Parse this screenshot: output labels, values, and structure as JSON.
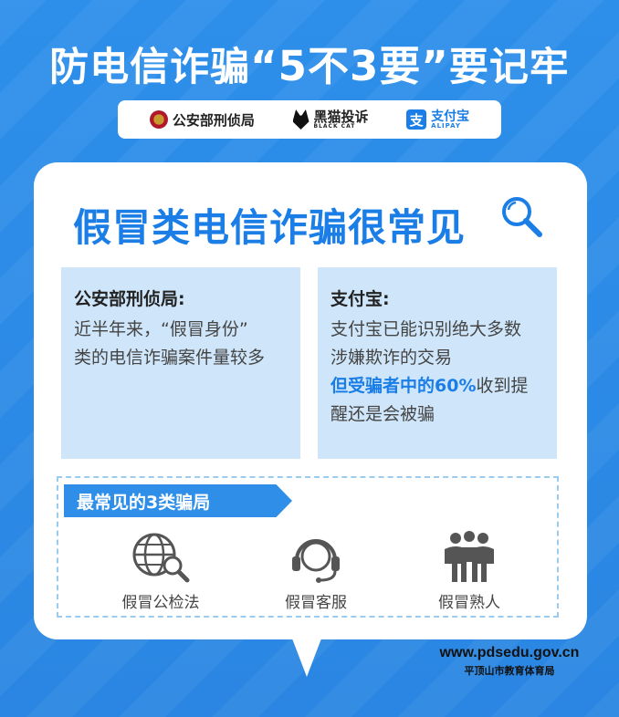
{
  "header": {
    "title_pre": "防电信诈骗",
    "title_strong": "“5不3要”",
    "title_post": "要记牢"
  },
  "sponsors": [
    {
      "name": "公安部刑侦局",
      "icon": "police-badge-icon"
    },
    {
      "name": "黑猫投诉",
      "sub": "BLACK CAT",
      "icon": "black-cat-icon"
    },
    {
      "name": "支付宝",
      "sub": "ALIPAY",
      "icon": "alipay-icon"
    }
  ],
  "section": {
    "title": "假冒类电信诈骗很常见",
    "icon": "magnifier-icon"
  },
  "boxes": {
    "left": {
      "title": "公安部刑侦局:",
      "lines": [
        "近半年来，“假冒身份”",
        "类的电信诈骗案件量较多"
      ]
    },
    "right": {
      "title": "支付宝:",
      "lines": [
        "支付宝已能识别绝大多数",
        "涉嫌欺诈的交易"
      ],
      "emphasis": "但受骗者中的60%",
      "line3_rest": "收到提",
      "line4": "醒还是会被骗"
    }
  },
  "scams": {
    "banner": "最常见的3类骗局",
    "items": [
      {
        "label": "假冒公检法",
        "icon": "globe-magnifier-icon"
      },
      {
        "label": "假冒客服",
        "icon": "headset-agent-icon"
      },
      {
        "label": "假冒熟人",
        "icon": "group-people-icon"
      }
    ]
  },
  "watermark": {
    "url": "www.pdsedu.gov.cn",
    "name": "平顶山市教育体育局"
  },
  "colors": {
    "background": "#2f8fe8",
    "accent": "#1b7ee6",
    "box_fill": "#cfe6fa",
    "card": "#ffffff"
  }
}
